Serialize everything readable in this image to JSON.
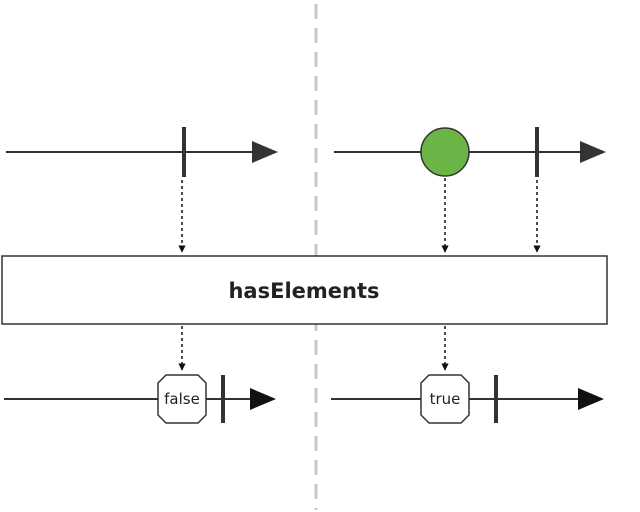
{
  "diagram": {
    "operator": "hasElements",
    "outputs": {
      "left": "false",
      "right": "true"
    }
  },
  "colors": {
    "item": "#6ab546",
    "line": "#333333",
    "divider": "#c8c8c8"
  }
}
